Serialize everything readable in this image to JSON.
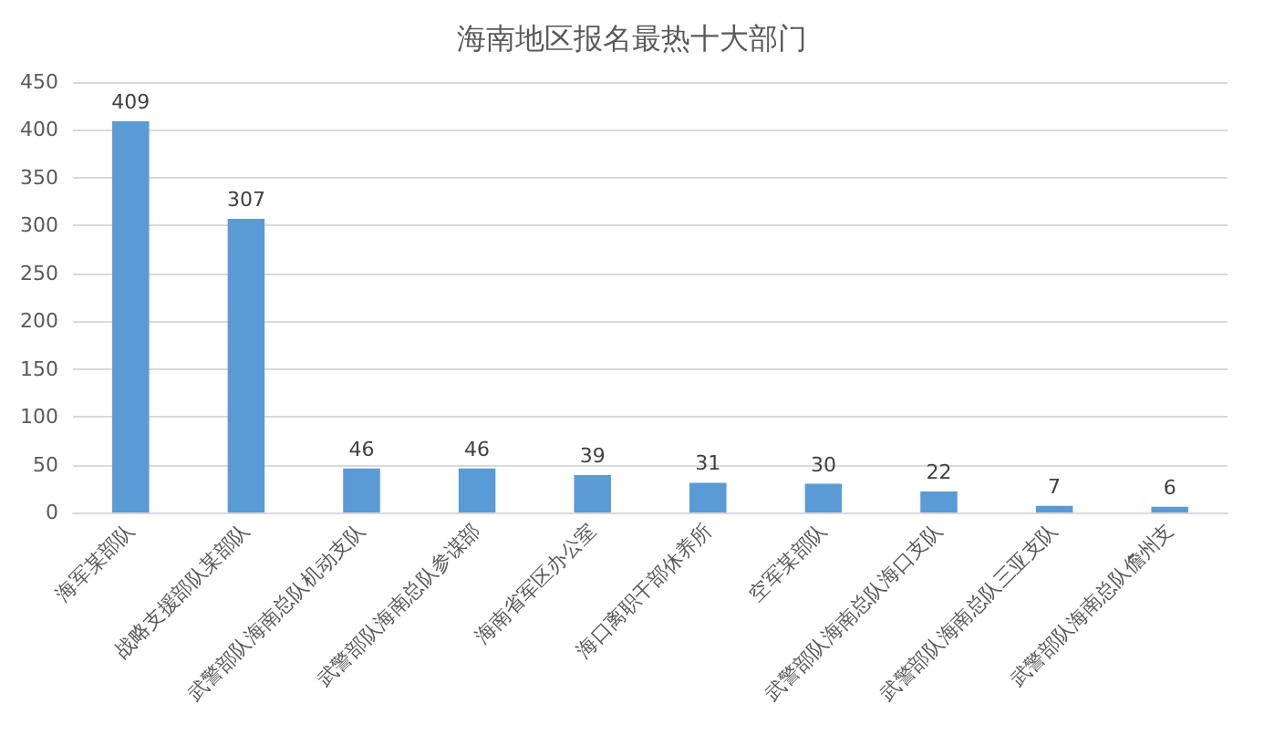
{
  "chart_data": {
    "type": "bar",
    "title": "海南地区报名最热十大部门",
    "categories": [
      "海军某部队",
      "战略支援部队某部队",
      "武警部队海南总队机动支队",
      "武警部队海南总队参谋部",
      "海南省军区办公室",
      "海口离职干部休养所",
      "空军某部队",
      "武警部队海南总队海口支队",
      "武警部队海南总队三亚支队",
      "武警部队海南总队儋州支"
    ],
    "values": [
      409,
      307,
      46,
      46,
      39,
      31,
      30,
      22,
      7,
      6
    ],
    "color": "#5b9bd5",
    "ylim": [
      0,
      450
    ],
    "yticks": [
      0,
      50,
      100,
      150,
      200,
      250,
      300,
      350,
      400,
      450
    ],
    "grid": "y",
    "data_labels": true
  }
}
